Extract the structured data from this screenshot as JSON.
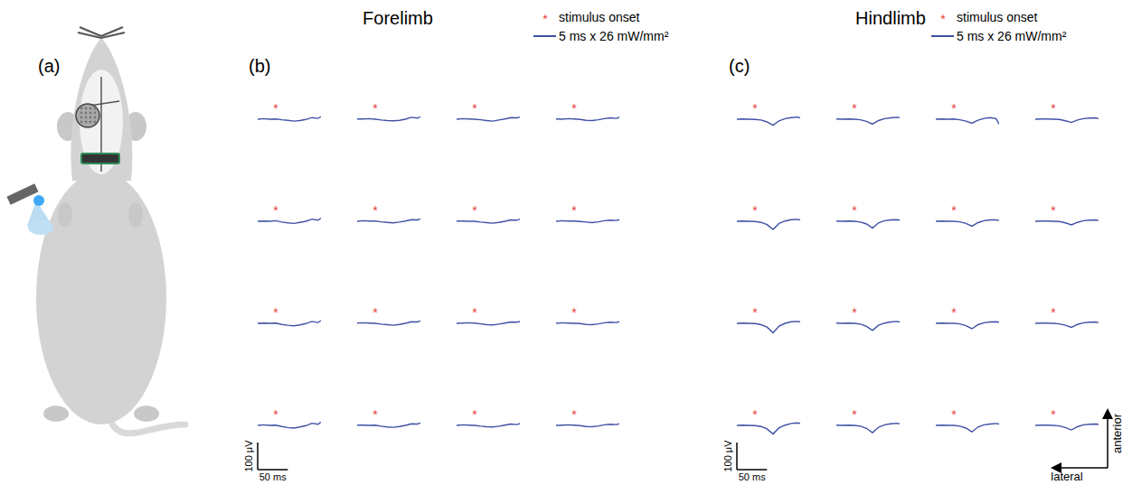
{
  "panel_a": {
    "label": "(a)"
  },
  "orientation": {
    "vertical": "anterior",
    "horizontal": "lateral"
  },
  "chart_data": [
    {
      "type": "line",
      "label": "(b)",
      "title": "Forelimb",
      "x": [
        -30,
        -20,
        -10,
        0,
        10,
        20,
        30,
        40,
        50,
        60,
        70,
        75
      ],
      "xlim": [
        -30,
        75
      ],
      "ylim": [
        -50,
        50
      ],
      "tick_labels": false,
      "grid": false,
      "color": "#3f51a5",
      "stimulus": {
        "text": "*",
        "x": 0,
        "color": "#e8393a"
      },
      "legend_items": [
        {
          "marker": "*",
          "label": "stimulus onset",
          "color": "#e8393a"
        },
        {
          "line_style": "solid",
          "label": "5 ms x 26 mW/mm²",
          "color": "#3f51a5"
        }
      ],
      "scale_bar": {
        "x": 50,
        "x_label": "50 ms",
        "y": 100,
        "y_label": "100 μV"
      },
      "series": [
        {
          "values": [
            0,
            2,
            0,
            1,
            -2,
            -4,
            -7,
            -5,
            -1,
            6,
            3,
            10
          ]
        },
        {
          "values": [
            1,
            1,
            2,
            0,
            -3,
            -5,
            -6,
            -4,
            0,
            7,
            4,
            9
          ]
        },
        {
          "values": [
            0,
            2,
            1,
            0,
            -2,
            -5,
            -7,
            -3,
            1,
            6,
            5,
            8
          ]
        },
        {
          "values": [
            1,
            0,
            2,
            1,
            -1,
            -4,
            -5,
            -2,
            2,
            5,
            3,
            7
          ]
        },
        {
          "values": [
            0,
            1,
            0,
            2,
            -3,
            -6,
            -8,
            -4,
            0,
            8,
            4,
            11
          ]
        },
        {
          "values": [
            0,
            2,
            1,
            1,
            -2,
            -4,
            -6,
            -3,
            1,
            6,
            5,
            9
          ]
        },
        {
          "values": [
            1,
            1,
            0,
            0,
            -3,
            -5,
            -7,
            -4,
            0,
            5,
            4,
            8
          ]
        },
        {
          "values": [
            0,
            2,
            1,
            1,
            -1,
            -3,
            -5,
            -2,
            2,
            4,
            3,
            6
          ]
        },
        {
          "values": [
            0,
            1,
            0,
            1,
            -4,
            -7,
            -9,
            -6,
            -1,
            7,
            3,
            10
          ]
        },
        {
          "values": [
            1,
            2,
            1,
            0,
            -3,
            -5,
            -7,
            -4,
            0,
            6,
            5,
            9
          ]
        },
        {
          "values": [
            0,
            1,
            2,
            1,
            -2,
            -5,
            -6,
            -3,
            1,
            5,
            4,
            7
          ]
        },
        {
          "values": [
            0,
            2,
            1,
            0,
            -1,
            -4,
            -5,
            -2,
            2,
            4,
            3,
            6
          ]
        },
        {
          "values": [
            0,
            2,
            0,
            1,
            -4,
            -8,
            -10,
            -6,
            -1,
            8,
            4,
            12
          ]
        },
        {
          "values": [
            1,
            1,
            0,
            1,
            -3,
            -6,
            -7,
            -4,
            0,
            6,
            5,
            9
          ]
        },
        {
          "values": [
            0,
            2,
            1,
            0,
            -3,
            -5,
            -6,
            -3,
            1,
            5,
            3,
            7
          ]
        },
        {
          "values": [
            0,
            1,
            2,
            1,
            -1,
            -4,
            -5,
            -2,
            2,
            4,
            3,
            6
          ]
        }
      ]
    },
    {
      "type": "line",
      "label": "(c)",
      "title": "Hindlimb",
      "x": [
        -30,
        -20,
        -10,
        0,
        10,
        20,
        30,
        40,
        50,
        60,
        70,
        75
      ],
      "xlim": [
        -30,
        75
      ],
      "ylim": [
        -50,
        50
      ],
      "tick_labels": false,
      "grid": false,
      "color": "#3f51a5",
      "stimulus": {
        "text": "*",
        "x": 0,
        "color": "#e8393a"
      },
      "legend_items": [
        {
          "marker": "*",
          "label": "stimulus onset",
          "color": "#e8393a"
        },
        {
          "line_style": "solid",
          "label": "5 ms x 26 mW/mm²",
          "color": "#3f51a5"
        }
      ],
      "scale_bar": {
        "x": 50,
        "x_label": "50 ms",
        "y": 100,
        "y_label": "100 μV"
      },
      "series": [
        {
          "values": [
            0,
            1,
            0,
            -1,
            -3,
            -10,
            -22,
            -6,
            2,
            6,
            8,
            5
          ]
        },
        {
          "values": [
            1,
            0,
            1,
            0,
            -2,
            -8,
            -18,
            -5,
            2,
            5,
            7,
            6
          ]
        },
        {
          "values": [
            0,
            1,
            0,
            1,
            -2,
            -7,
            -15,
            -4,
            3,
            6,
            2,
            -18
          ]
        },
        {
          "values": [
            0,
            1,
            1,
            0,
            -1,
            -6,
            -12,
            -3,
            2,
            4,
            5,
            2
          ]
        },
        {
          "values": [
            0,
            1,
            0,
            -1,
            -4,
            -12,
            -30,
            -8,
            1,
            6,
            7,
            5
          ]
        },
        {
          "values": [
            1,
            0,
            1,
            0,
            -3,
            -10,
            -25,
            -6,
            2,
            5,
            6,
            4
          ]
        },
        {
          "values": [
            0,
            1,
            0,
            0,
            -2,
            -8,
            -18,
            -5,
            2,
            5,
            5,
            3
          ]
        },
        {
          "values": [
            0,
            1,
            1,
            0,
            -1,
            -6,
            -13,
            -4,
            2,
            4,
            5,
            3
          ]
        },
        {
          "values": [
            0,
            1,
            0,
            -1,
            -5,
            -14,
            -35,
            -10,
            0,
            6,
            7,
            6
          ]
        },
        {
          "values": [
            1,
            0,
            1,
            0,
            -3,
            -11,
            -26,
            -7,
            1,
            5,
            7,
            5
          ]
        },
        {
          "values": [
            0,
            1,
            0,
            0,
            -2,
            -9,
            -20,
            -5,
            2,
            5,
            6,
            4
          ]
        },
        {
          "values": [
            0,
            1,
            1,
            0,
            -2,
            -7,
            -15,
            -4,
            2,
            4,
            5,
            3
          ]
        },
        {
          "values": [
            0,
            1,
            0,
            -1,
            -4,
            -13,
            -32,
            -9,
            1,
            7,
            9,
            8
          ]
        },
        {
          "values": [
            1,
            0,
            1,
            0,
            -3,
            -11,
            -27,
            -7,
            2,
            6,
            8,
            6
          ]
        },
        {
          "values": [
            0,
            1,
            0,
            0,
            -3,
            -10,
            -24,
            -6,
            2,
            5,
            7,
            5
          ]
        },
        {
          "values": [
            0,
            1,
            1,
            0,
            -2,
            -8,
            -17,
            -5,
            2,
            4,
            5,
            4
          ]
        }
      ]
    }
  ]
}
